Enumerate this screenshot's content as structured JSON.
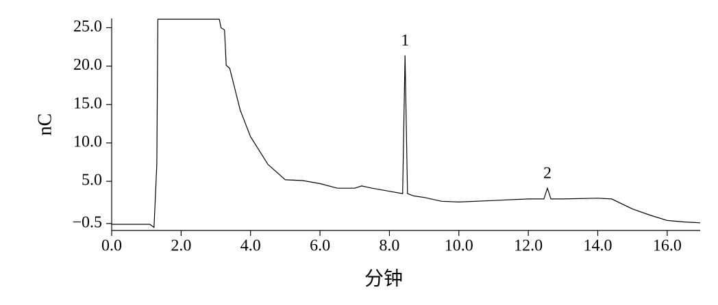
{
  "chart_data": {
    "type": "line",
    "x_label": "分钟",
    "y_label": "nC",
    "x": [
      0.0,
      1.1,
      1.22,
      1.3,
      1.33,
      3.1,
      3.15,
      3.25,
      3.3,
      3.4,
      3.5,
      3.7,
      4.0,
      4.5,
      5.0,
      5.5,
      6.0,
      6.5,
      7.0,
      7.2,
      7.5,
      8.0,
      8.38,
      8.45,
      8.52,
      8.7,
      9.0,
      9.5,
      10.0,
      11.0,
      12.0,
      12.45,
      12.55,
      12.65,
      13.0,
      14.0,
      14.4,
      15.0,
      15.5,
      16.0,
      16.5,
      16.95
    ],
    "series": [
      {
        "color": "#000000",
        "values": [
          -0.6,
          -0.6,
          -1.0,
          7.2,
          26.1,
          26.1,
          25.0,
          24.7,
          20.1,
          19.7,
          17.9,
          14.3,
          10.8,
          7.2,
          5.2,
          5.1,
          4.7,
          4.1,
          4.1,
          4.4,
          4.1,
          3.7,
          3.4,
          21.4,
          3.4,
          3.1,
          2.9,
          2.4,
          2.3,
          2.5,
          2.7,
          2.7,
          4.1,
          2.7,
          2.7,
          2.8,
          2.7,
          1.4,
          0.6,
          -0.1,
          -0.3,
          -0.4
        ]
      }
    ],
    "annotations": [
      {
        "text": "1",
        "x": 8.45
      },
      {
        "text": "2",
        "x": 12.55
      }
    ],
    "xlim": [
      0,
      16.95
    ],
    "ylim": [
      -1.4,
      26.2
    ],
    "xticks": [
      {
        "value": 0,
        "label": "0.0"
      },
      {
        "value": 2,
        "label": "2.0"
      },
      {
        "value": 4,
        "label": "4.0"
      },
      {
        "value": 6,
        "label": "6.0"
      },
      {
        "value": 8,
        "label": "8.0"
      },
      {
        "value": 10,
        "label": "10.0"
      },
      {
        "value": 12,
        "label": "12.0"
      },
      {
        "value": 14,
        "label": "14.0"
      },
      {
        "value": 16,
        "label": "16.0"
      }
    ],
    "yticks": [
      {
        "value": -0.5,
        "label": "−0.5"
      },
      {
        "value": 5,
        "label": "5.0"
      },
      {
        "value": 10,
        "label": "10.0"
      },
      {
        "value": 15,
        "label": "15.0"
      },
      {
        "value": 20,
        "label": "20.0"
      },
      {
        "value": 25,
        "label": "25.0"
      }
    ],
    "grid": false
  }
}
